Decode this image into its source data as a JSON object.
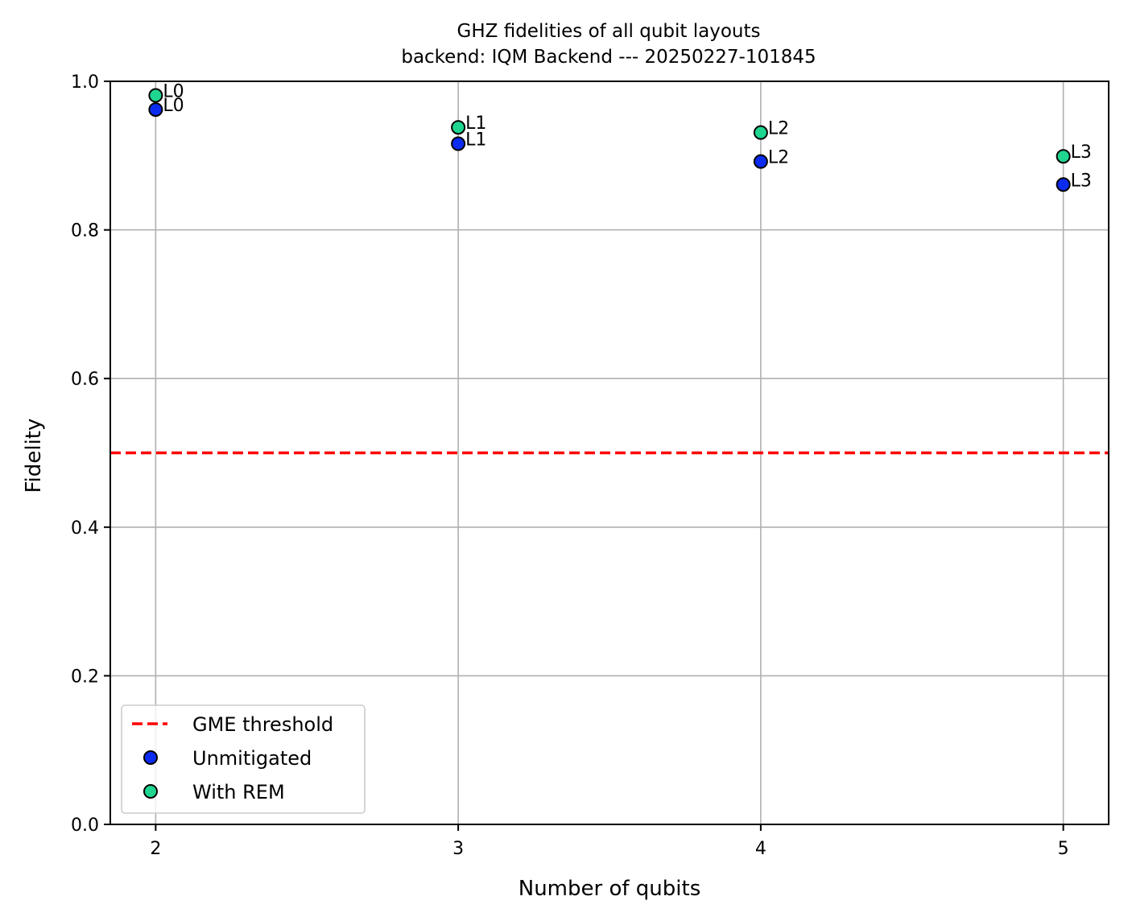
{
  "chart_data": {
    "type": "scatter",
    "title": "GHZ fidelities of all qubit layouts",
    "subtitle": "backend: IQM Backend --- 20250227-101845",
    "xlabel": "Number of qubits",
    "ylabel": "Fidelity",
    "xlim": [
      1.85,
      5.15
    ],
    "ylim": [
      0.0,
      1.0
    ],
    "xticks": [
      2,
      3,
      4,
      5
    ],
    "yticks": [
      0.0,
      0.2,
      0.4,
      0.6,
      0.8,
      1.0
    ],
    "xtick_labels": [
      "2",
      "3",
      "4",
      "5"
    ],
    "ytick_labels": [
      "0.0",
      "0.2",
      "0.4",
      "0.6",
      "0.8",
      "1.0"
    ],
    "grid": true,
    "legend_position": "lower-left",
    "threshold": {
      "name": "GME threshold",
      "y": 0.5,
      "color": "#ff0000",
      "style": "dashed"
    },
    "series": [
      {
        "name": "Unmitigated",
        "color": "#0b2cf0",
        "x": [
          2,
          3,
          4,
          5
        ],
        "y": [
          0.962,
          0.916,
          0.892,
          0.861
        ],
        "labels": [
          "L0",
          "L1",
          "L2",
          "L3"
        ]
      },
      {
        "name": "With REM",
        "color": "#1fd690",
        "x": [
          2,
          3,
          4,
          5
        ],
        "y": [
          0.981,
          0.938,
          0.931,
          0.899
        ],
        "labels": [
          "L0",
          "L1",
          "L2",
          "L3"
        ]
      }
    ]
  }
}
